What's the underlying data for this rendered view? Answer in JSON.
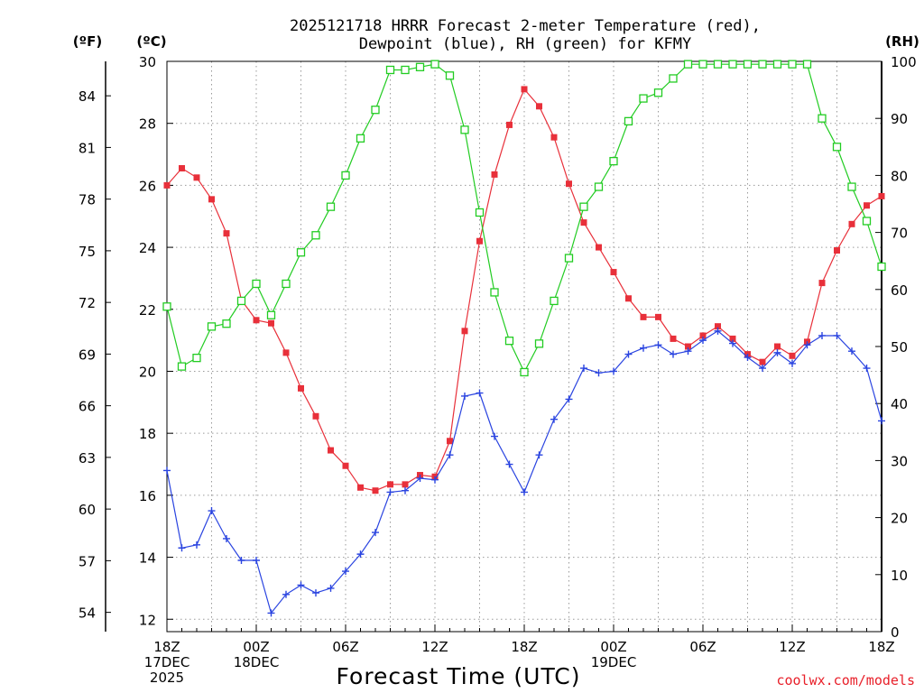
{
  "chart_data": {
    "type": "line",
    "title_line1": "2025121718 HRRR Forecast 2-meter Temperature (red),",
    "title_line2": "Dewpoint (blue), RH (green) for KFMY",
    "xlabel": "Forecast Time (UTC)",
    "credit": "coolwx.com/models",
    "left_unit_f": "(ºF)",
    "left_unit_c": "(ºC)",
    "right_unit": "(RH)",
    "ylim_c": [
      11.6,
      30
    ],
    "ylim_rh": [
      0,
      100
    ],
    "c_ticks": [
      "12",
      "14",
      "16",
      "18",
      "20",
      "22",
      "24",
      "26",
      "28",
      "30"
    ],
    "f_ticks": [
      "54",
      "57",
      "60",
      "63",
      "66",
      "69",
      "72",
      "75",
      "78",
      "81",
      "84"
    ],
    "rh_ticks": [
      "0",
      "10",
      "20",
      "30",
      "40",
      "50",
      "60",
      "70",
      "80",
      "90",
      "100"
    ],
    "x_range_hours": [
      0,
      48
    ],
    "x_ticks": [
      {
        "hour": 0,
        "lines": [
          "18Z",
          "17DEC",
          "2025"
        ]
      },
      {
        "hour": 6,
        "lines": [
          "00Z",
          "18DEC"
        ]
      },
      {
        "hour": 12,
        "lines": [
          "06Z"
        ]
      },
      {
        "hour": 18,
        "lines": [
          "12Z"
        ]
      },
      {
        "hour": 24,
        "lines": [
          "18Z"
        ]
      },
      {
        "hour": 30,
        "lines": [
          "00Z",
          "19DEC"
        ]
      },
      {
        "hour": 36,
        "lines": [
          "06Z"
        ]
      },
      {
        "hour": 42,
        "lines": [
          "12Z"
        ]
      },
      {
        "hour": 48,
        "lines": [
          "18Z"
        ]
      }
    ],
    "hours": [
      0,
      1,
      2,
      3,
      4,
      5,
      6,
      7,
      8,
      9,
      10,
      11,
      12,
      13,
      14,
      15,
      16,
      17,
      18,
      19,
      20,
      21,
      22,
      23,
      24,
      25,
      26,
      27,
      28,
      29,
      30,
      31,
      32,
      33,
      34,
      35,
      36,
      37,
      38,
      39,
      40,
      41,
      42,
      43,
      44,
      45,
      46,
      47,
      48
    ],
    "series": [
      {
        "name": "2-meter Temperature",
        "axis": "celsius",
        "color": "#e8303a",
        "marker": "filled-square",
        "values": [
          26.0,
          26.55,
          26.25,
          25.55,
          24.45,
          22.3,
          21.65,
          21.55,
          20.6,
          19.45,
          18.55,
          17.45,
          16.95,
          16.25,
          16.15,
          16.35,
          16.35,
          16.65,
          16.6,
          17.75,
          21.3,
          24.2,
          26.35,
          27.95,
          29.1,
          28.55,
          27.55,
          26.05,
          24.8,
          24.0,
          23.2,
          22.35,
          21.75,
          21.75,
          21.05,
          20.8,
          21.15,
          21.45,
          21.05,
          20.55,
          20.3,
          20.8,
          20.5,
          20.95,
          22.85,
          23.9,
          24.75,
          25.35,
          25.65
        ]
      },
      {
        "name": "Dewpoint",
        "axis": "celsius",
        "color": "#2a44e0",
        "marker": "plus",
        "values": [
          16.8,
          14.3,
          14.4,
          15.5,
          14.6,
          13.9,
          13.9,
          12.2,
          12.8,
          13.1,
          12.85,
          13.0,
          13.55,
          14.1,
          14.8,
          16.1,
          16.15,
          16.55,
          16.5,
          17.3,
          19.2,
          19.3,
          17.9,
          17.0,
          16.1,
          17.3,
          18.45,
          19.1,
          20.1,
          19.95,
          20.0,
          20.55,
          20.75,
          20.85,
          20.55,
          20.65,
          21.0,
          21.3,
          20.9,
          20.45,
          20.1,
          20.6,
          20.25,
          20.85,
          21.15,
          21.15,
          20.65,
          20.1,
          18.4
        ]
      },
      {
        "name": "RH",
        "axis": "rh",
        "color": "#22cc22",
        "marker": "open-square",
        "values": [
          57,
          46.5,
          48,
          53.5,
          54,
          58,
          61,
          55.5,
          61,
          66.5,
          69.5,
          74.5,
          80,
          86.5,
          91.5,
          98.5,
          98.5,
          99,
          99.5,
          97.5,
          88,
          73.5,
          59.5,
          51,
          45.5,
          50.5,
          58,
          65.5,
          74.5,
          78,
          82.5,
          89.5,
          93.5,
          94.5,
          97,
          99.5,
          99.5,
          99.5,
          99.5,
          99.5,
          99.5,
          99.5,
          99.5,
          99.5,
          90,
          85,
          78,
          72,
          64
        ]
      }
    ]
  }
}
